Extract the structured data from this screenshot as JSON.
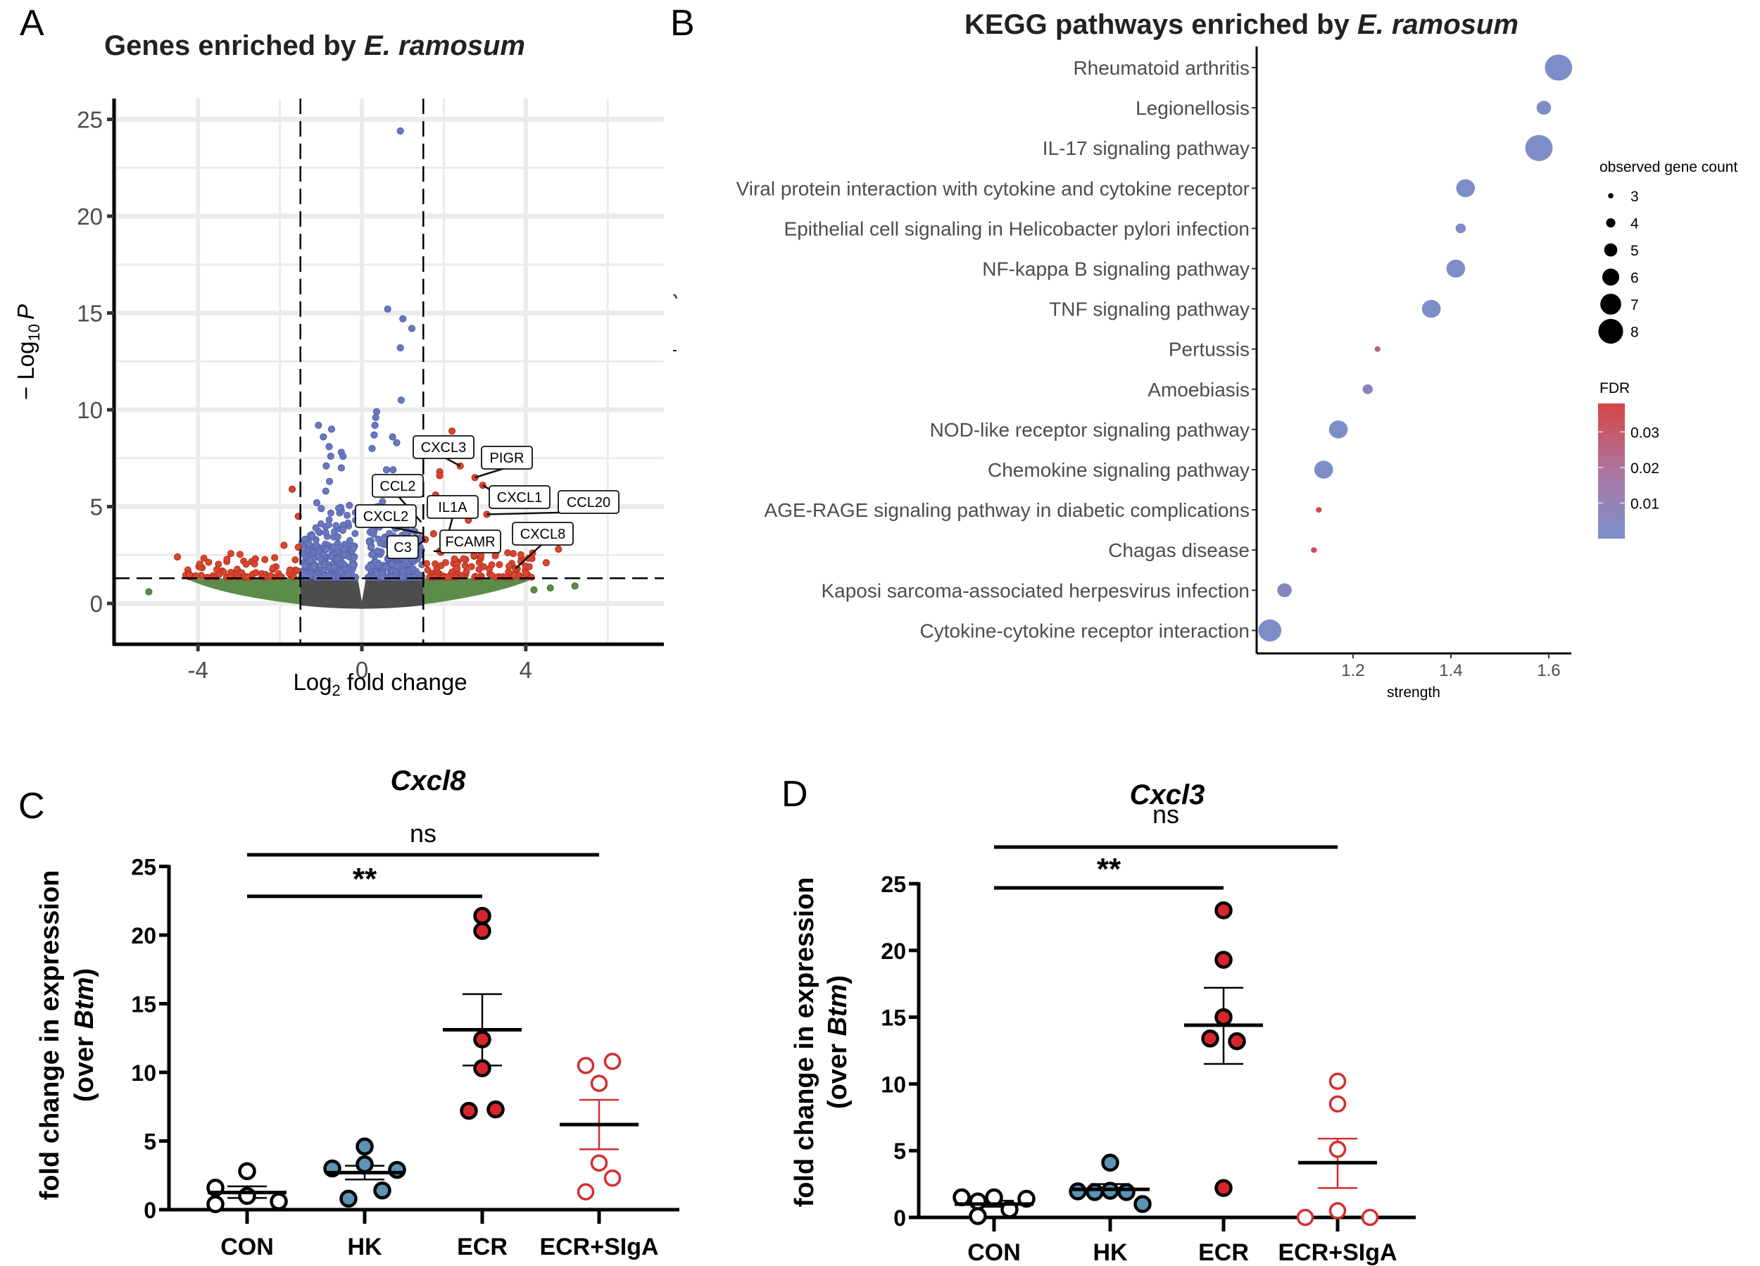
{
  "figure": {
    "panels": [
      "A",
      "B",
      "C",
      "D"
    ]
  },
  "chart_data": [
    {
      "id": "A",
      "type": "scatter",
      "subtype": "volcano",
      "panel_letter": "A",
      "title_prefix": "Genes enriched by ",
      "title_italic": "E. ramosum",
      "xlabel_main": "Log",
      "xlabel_sub": "2",
      "xlabel_rest": " fold change",
      "ylabel_prefix": "− Log",
      "ylabel_sub": "10",
      "ylabel_italic": "P",
      "xlim": [
        -6.2,
        7.4
      ],
      "ylim": [
        -1.7,
        26.5
      ],
      "xticks": [
        -4,
        0,
        4
      ],
      "yticks": [
        0,
        5,
        10,
        15,
        20,
        25
      ],
      "grid": true,
      "thresholds": {
        "log2fc": 1.5,
        "neg_log10_p": 1.3
      },
      "colors": {
        "ns": "#4d4d4d",
        "log2fc_only": "#5b8c4a",
        "p_only": "#6a78c0",
        "p_and_log2fc": "#d9452f"
      },
      "highlight_points": [
        {
          "x": 0.94,
          "y": 24.4,
          "group": "p_only"
        },
        {
          "x": 0.63,
          "y": 15.2,
          "group": "p_only"
        },
        {
          "x": 1.0,
          "y": 14.7,
          "group": "p_only"
        },
        {
          "x": 1.22,
          "y": 14.2,
          "group": "p_only"
        },
        {
          "x": 0.94,
          "y": 13.2,
          "group": "p_only"
        },
        {
          "x": 0.96,
          "y": 10.5,
          "group": "p_only"
        },
        {
          "x": 0.36,
          "y": 9.9,
          "group": "p_only"
        },
        {
          "x": 0.34,
          "y": 9.6,
          "group": "p_only"
        },
        {
          "x": 0.32,
          "y": 9.2,
          "group": "p_only"
        },
        {
          "x": 0.3,
          "y": 8.7,
          "group": "p_only"
        },
        {
          "x": 0.75,
          "y": 8.6,
          "group": "p_only"
        },
        {
          "x": 0.85,
          "y": 8.3,
          "group": "p_only"
        },
        {
          "x": 0.25,
          "y": 8.0,
          "group": "p_only"
        },
        {
          "x": -1.06,
          "y": 9.2,
          "group": "p_only"
        },
        {
          "x": -0.74,
          "y": 9.0,
          "group": "p_only"
        },
        {
          "x": -0.94,
          "y": 8.6,
          "group": "p_only"
        },
        {
          "x": -0.8,
          "y": 8.1,
          "group": "p_only"
        },
        {
          "x": -0.5,
          "y": 7.8,
          "group": "p_only"
        },
        {
          "x": -0.76,
          "y": 7.6,
          "group": "p_only"
        },
        {
          "x": -0.46,
          "y": 7.6,
          "group": "p_only"
        },
        {
          "x": -0.87,
          "y": 7.1,
          "group": "p_only"
        },
        {
          "x": -0.5,
          "y": 7.0,
          "group": "p_only"
        },
        {
          "x": -0.79,
          "y": 6.3,
          "group": "p_only"
        },
        {
          "x": -0.88,
          "y": 5.8,
          "group": "p_only"
        },
        {
          "x": -1.1,
          "y": 5.2,
          "group": "p_only"
        },
        {
          "x": -0.99,
          "y": 4.9,
          "group": "p_only"
        },
        {
          "x": 0.6,
          "y": 6.9,
          "group": "p_only"
        },
        {
          "x": 0.76,
          "y": 6.9,
          "group": "p_only"
        },
        {
          "x": 2.2,
          "y": 8.9,
          "group": "p_and_log2fc"
        },
        {
          "x": 2.4,
          "y": 7.1,
          "group": "p_and_log2fc"
        },
        {
          "x": 1.9,
          "y": 6.8,
          "group": "p_and_log2fc"
        },
        {
          "x": 1.9,
          "y": 6.6,
          "group": "p_and_log2fc"
        },
        {
          "x": 2.76,
          "y": 6.5,
          "group": "p_and_log2fc"
        },
        {
          "x": 2.95,
          "y": 6.1,
          "group": "p_and_log2fc"
        },
        {
          "x": 1.8,
          "y": 5.6,
          "group": "p_and_log2fc"
        },
        {
          "x": 3.05,
          "y": 4.6,
          "group": "p_and_log2fc"
        },
        {
          "x": 2.6,
          "y": 4.3,
          "group": "p_and_log2fc"
        },
        {
          "x": 1.75,
          "y": 3.6,
          "group": "p_and_log2fc"
        },
        {
          "x": 1.55,
          "y": 3.3,
          "group": "p_and_log2fc"
        },
        {
          "x": 2.6,
          "y": 3.0,
          "group": "p_and_log2fc"
        },
        {
          "x": 4.8,
          "y": 2.8,
          "group": "p_and_log2fc"
        },
        {
          "x": 1.9,
          "y": 2.7,
          "group": "p_and_log2fc"
        },
        {
          "x": 3.0,
          "y": 2.8,
          "group": "p_and_log2fc"
        },
        {
          "x": 4.5,
          "y": 2.1,
          "group": "p_and_log2fc"
        },
        {
          "x": 3.75,
          "y": 1.8,
          "group": "p_and_log2fc"
        },
        {
          "x": -1.7,
          "y": 5.9,
          "group": "p_and_log2fc"
        },
        {
          "x": -1.55,
          "y": 4.5,
          "group": "p_and_log2fc"
        },
        {
          "x": -1.9,
          "y": 3.0,
          "group": "p_and_log2fc"
        },
        {
          "x": -4.5,
          "y": 2.4,
          "group": "p_and_log2fc"
        },
        {
          "x": -1.55,
          "y": 2.9,
          "group": "p_and_log2fc"
        },
        {
          "x": -2.6,
          "y": 2.3,
          "group": "p_and_log2fc"
        },
        {
          "x": -5.2,
          "y": 0.6,
          "group": "log2fc_only"
        },
        {
          "x": 4.2,
          "y": 0.7,
          "group": "log2fc_only"
        },
        {
          "x": 4.6,
          "y": 0.8,
          "group": "log2fc_only"
        },
        {
          "x": 5.2,
          "y": 0.9,
          "group": "log2fc_only"
        }
      ],
      "labels": [
        {
          "gene": "CXCL3",
          "x": 2.4,
          "y": 7.1
        },
        {
          "gene": "PIGR",
          "x": 2.76,
          "y": 6.5
        },
        {
          "gene": "CCL2",
          "x": 1.45,
          "y": 4.2
        },
        {
          "gene": "IL1A",
          "x": 2.0,
          "y": 2.7
        },
        {
          "gene": "CXCL1",
          "x": 2.95,
          "y": 6.1
        },
        {
          "gene": "CCL20",
          "x": 3.05,
          "y": 4.6
        },
        {
          "gene": "CXCL2",
          "x": 1.5,
          "y": 3.6
        },
        {
          "gene": "FCAMR",
          "x": 1.75,
          "y": 2.7
        },
        {
          "gene": "CXCL8",
          "x": 3.75,
          "y": 1.8
        },
        {
          "gene": "C3",
          "x": 1.55,
          "y": 3.3
        }
      ]
    },
    {
      "id": "B",
      "type": "scatter",
      "subtype": "dot-plot",
      "panel_letter": "B",
      "title_prefix": "KEGG pathways enriched by ",
      "title_italic": "E. ramosum",
      "xlabel": "strength",
      "xlim": [
        1.003,
        1.646
      ],
      "xticks": [
        1.2,
        1.4,
        1.6
      ],
      "categories": [
        "Rheumatoid arthritis",
        "Legionellosis",
        "IL-17 signaling pathway",
        "Viral protein interaction with cytokine and cytokine receptor",
        "Epithelial cell signaling in Helicobacter pylori infection",
        "NF-kappa B signaling pathway",
        "TNF signaling pathway",
        "Pertussis",
        "Amoebiasis",
        "NOD-like receptor signaling pathway",
        "Chemokine signaling pathway",
        "AGE-RAGE signaling pathway in diabetic complications",
        "Chagas disease",
        "Kaposi sarcoma-associated herpesvirus infection",
        "Cytokine-cytokine receptor interaction"
      ],
      "strength": [
        1.62,
        1.59,
        1.58,
        1.43,
        1.42,
        1.41,
        1.36,
        1.25,
        1.23,
        1.17,
        1.14,
        1.13,
        1.12,
        1.06,
        1.03
      ],
      "gene_count": [
        8,
        5,
        8,
        6,
        4,
        6,
        6,
        3,
        4,
        6,
        6,
        3,
        3,
        5,
        7
      ],
      "fdr": [
        0.001,
        0.001,
        0.001,
        0.001,
        0.002,
        0.001,
        0.001,
        0.022,
        0.005,
        0.001,
        0.001,
        0.036,
        0.036,
        0.004,
        0.001
      ],
      "size_legend": {
        "title": "observed gene count",
        "values": [
          3,
          4,
          5,
          6,
          7,
          8
        ]
      },
      "color_legend": {
        "title": "FDR",
        "ticks": [
          0.03,
          0.02,
          0.01
        ],
        "tick_labels": [
          "0.03",
          "0.02",
          "0.01"
        ],
        "range": [
          0.0,
          0.038
        ],
        "low_color": "#7b8fcb",
        "high_color": "#d64545"
      }
    },
    {
      "id": "C",
      "type": "scatter",
      "subtype": "dot-mean-sem",
      "panel_letter": "C",
      "title": "Cxcl8",
      "ylabel_line1": "fold change in expression",
      "ylabel_line2_prefix": "(over ",
      "ylabel_line2_italic": "Btm",
      "ylabel_line2_suffix": ")",
      "ylim": [
        0,
        25
      ],
      "yticks": [
        0,
        5,
        10,
        15,
        20,
        25
      ],
      "categories": [
        "CON",
        "HK",
        "ECR",
        "ECR+SIgA"
      ],
      "groups": [
        {
          "name": "CON",
          "values": [
            1.6,
            0.4,
            2.8,
            1.0,
            0.6
          ],
          "mean": 1.25,
          "sem_low": 0.85,
          "sem_high": 1.7,
          "style": "open-black"
        },
        {
          "name": "HK",
          "values": [
            3.0,
            0.8,
            4.6,
            3.3,
            1.4,
            2.9
          ],
          "mean": 2.7,
          "sem_low": 2.2,
          "sem_high": 3.2,
          "style": "filled-blue"
        },
        {
          "name": "ECR",
          "values": [
            21.4,
            20.3,
            12.4,
            10.3,
            7.2,
            7.3
          ],
          "mean": 13.1,
          "sem_low": 10.5,
          "sem_high": 15.7,
          "style": "filled-red"
        },
        {
          "name": "ECR+SIgA",
          "values": [
            10.5,
            10.8,
            9.2,
            3.4,
            2.3,
            1.3
          ],
          "mean": 6.2,
          "sem_low": 4.4,
          "sem_high": 8.0,
          "style": "open-red"
        }
      ],
      "comparisons": [
        {
          "from": "CON",
          "to": "ECR+SIgA",
          "label": "ns"
        },
        {
          "from": "CON",
          "to": "ECR",
          "label": "**"
        }
      ]
    },
    {
      "id": "D",
      "type": "scatter",
      "subtype": "dot-mean-sem",
      "panel_letter": "D",
      "title": "Cxcl3",
      "ylabel_line1": "fold change in expression",
      "ylabel_line2_prefix": "(over ",
      "ylabel_line2_italic": "Btm",
      "ylabel_line2_suffix": ")",
      "ylim": [
        0,
        25
      ],
      "yticks": [
        0,
        5,
        10,
        15,
        20,
        25
      ],
      "categories": [
        "CON",
        "HK",
        "ECR",
        "ECR+SIgA"
      ],
      "groups": [
        {
          "name": "CON",
          "values": [
            1.5,
            1.2,
            1.5,
            0.6,
            0.1,
            1.4
          ],
          "mean": 1.0,
          "sem_low": 0.8,
          "sem_high": 1.25,
          "style": "open-black"
        },
        {
          "name": "HK",
          "values": [
            1.9,
            2.0,
            4.1,
            1.9,
            1.95,
            1.0
          ],
          "mean": 2.1,
          "sem_low": 1.7,
          "sem_high": 2.5,
          "style": "filled-blue"
        },
        {
          "name": "ECR",
          "values": [
            23.0,
            19.3,
            15.0,
            13.4,
            13.2,
            2.2
          ],
          "mean": 14.4,
          "sem_low": 11.5,
          "sem_high": 17.2,
          "style": "filled-red"
        },
        {
          "name": "ECR+SIgA",
          "values": [
            10.2,
            8.5,
            5.1,
            0.5,
            0.0,
            0.0
          ],
          "mean": 4.1,
          "sem_low": 2.2,
          "sem_high": 5.9,
          "style": "open-red"
        }
      ],
      "comparisons": [
        {
          "from": "CON",
          "to": "ECR+SIgA",
          "label": "ns"
        },
        {
          "from": "CON",
          "to": "ECR",
          "label": "**"
        }
      ]
    }
  ],
  "style_colors": {
    "blue_fill": "#5b94b4",
    "red_fill": "#d6262b",
    "open_red": "#d32f2f",
    "grid": "#ebebeb"
  }
}
